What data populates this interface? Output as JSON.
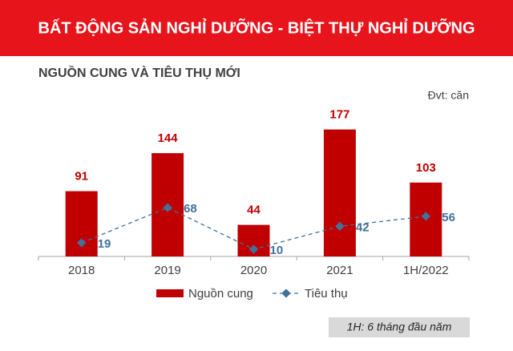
{
  "header": {
    "title": "BẤT ĐỘNG SẢN NGHỈ DƯỠNG - BIỆT THỰ NGHỈ DƯỠNG"
  },
  "chart_data": {
    "type": "bar",
    "title": "NGUỒN CUNG VÀ TIÊU THỤ MỚI",
    "unit_label": "Đvt: căn",
    "categories": [
      "2018",
      "2019",
      "2020",
      "2021",
      "1H/2022"
    ],
    "series": [
      {
        "name": "Nguồn cung",
        "type": "bar",
        "color": "#c00000",
        "values": [
          91,
          144,
          44,
          177,
          103
        ]
      },
      {
        "name": "Tiêu thụ",
        "type": "line",
        "color": "#41719c",
        "values": [
          19,
          68,
          10,
          42,
          56
        ]
      }
    ],
    "ylim": [
      0,
      200
    ],
    "note": "1H: 6 tháng đầu năm"
  }
}
